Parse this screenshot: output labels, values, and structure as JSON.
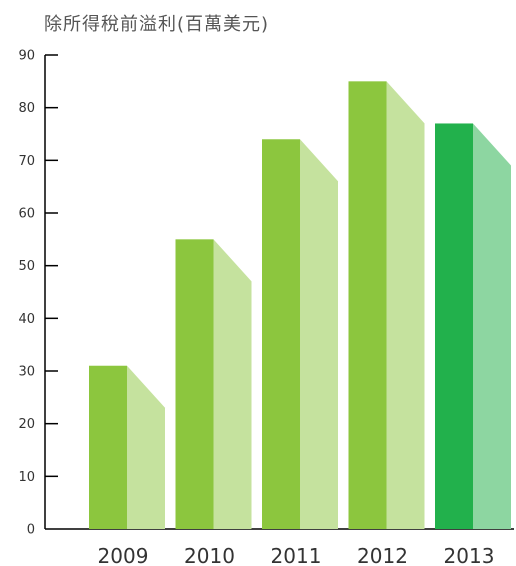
{
  "chart_data": {
    "type": "bar",
    "title": "除所得稅前溢利(百萬美元)",
    "xlabel": "",
    "ylabel": "",
    "categories": [
      "2009",
      "2010",
      "2011",
      "2012",
      "2013"
    ],
    "values": [
      31,
      55,
      74,
      85,
      77
    ],
    "ylim": [
      0,
      90
    ],
    "yticks": [
      0,
      10,
      20,
      30,
      40,
      50,
      60,
      70,
      80,
      90
    ],
    "grid": false,
    "colors": {
      "bar_front": [
        "#8cc63e",
        "#8cc63e",
        "#8cc63e",
        "#8cc63e",
        "#22b14c"
      ],
      "bar_side": [
        "#c5e29e",
        "#c5e29e",
        "#c5e29e",
        "#c5e29e",
        "#8dd6a1"
      ],
      "axis": "#000000"
    }
  }
}
